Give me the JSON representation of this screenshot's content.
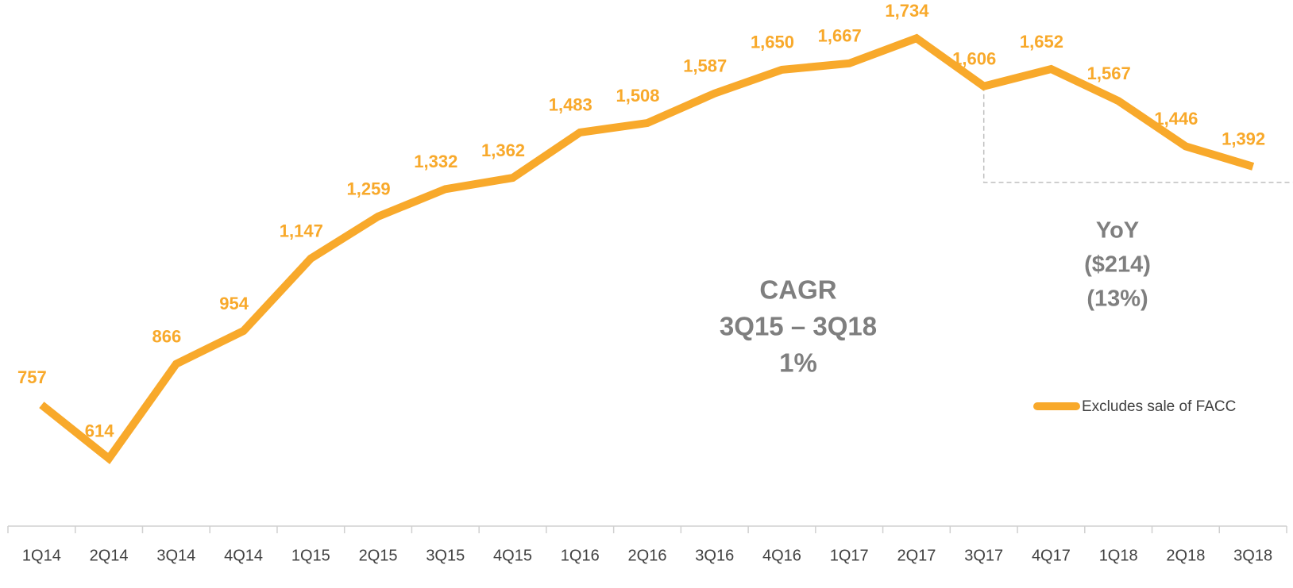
{
  "chart_data": {
    "type": "line",
    "categories": [
      "1Q14",
      "2Q14",
      "3Q14",
      "4Q14",
      "1Q15",
      "2Q15",
      "3Q15",
      "4Q15",
      "1Q16",
      "2Q16",
      "3Q16",
      "4Q16",
      "1Q17",
      "2Q17",
      "3Q17",
      "4Q17",
      "1Q18",
      "2Q18",
      "3Q18"
    ],
    "series": [
      {
        "name": "Excludes sale of FACC",
        "color": "#f8a92b",
        "values": [
          757,
          614,
          866,
          954,
          1147,
          1259,
          1332,
          1362,
          1483,
          1508,
          1587,
          1650,
          1667,
          1734,
          1606,
          1652,
          1567,
          1446,
          1392
        ],
        "value_labels": [
          "757",
          "614",
          "866",
          "954",
          "1,147",
          "1,259",
          "1,332",
          "1,362",
          "1,483",
          "1,508",
          "1,587",
          "1,650",
          "1,667",
          "1,734",
          "1,606",
          "1,652",
          "1,567",
          "1,446",
          "1,392"
        ]
      }
    ],
    "ylim": [
      400,
      1800
    ],
    "annotations": {
      "cagr": [
        "CAGR",
        "3Q15 – 3Q18",
        "1%"
      ],
      "yoy": [
        "YoY",
        "($214)",
        "(13%)"
      ]
    },
    "legend": "right"
  }
}
